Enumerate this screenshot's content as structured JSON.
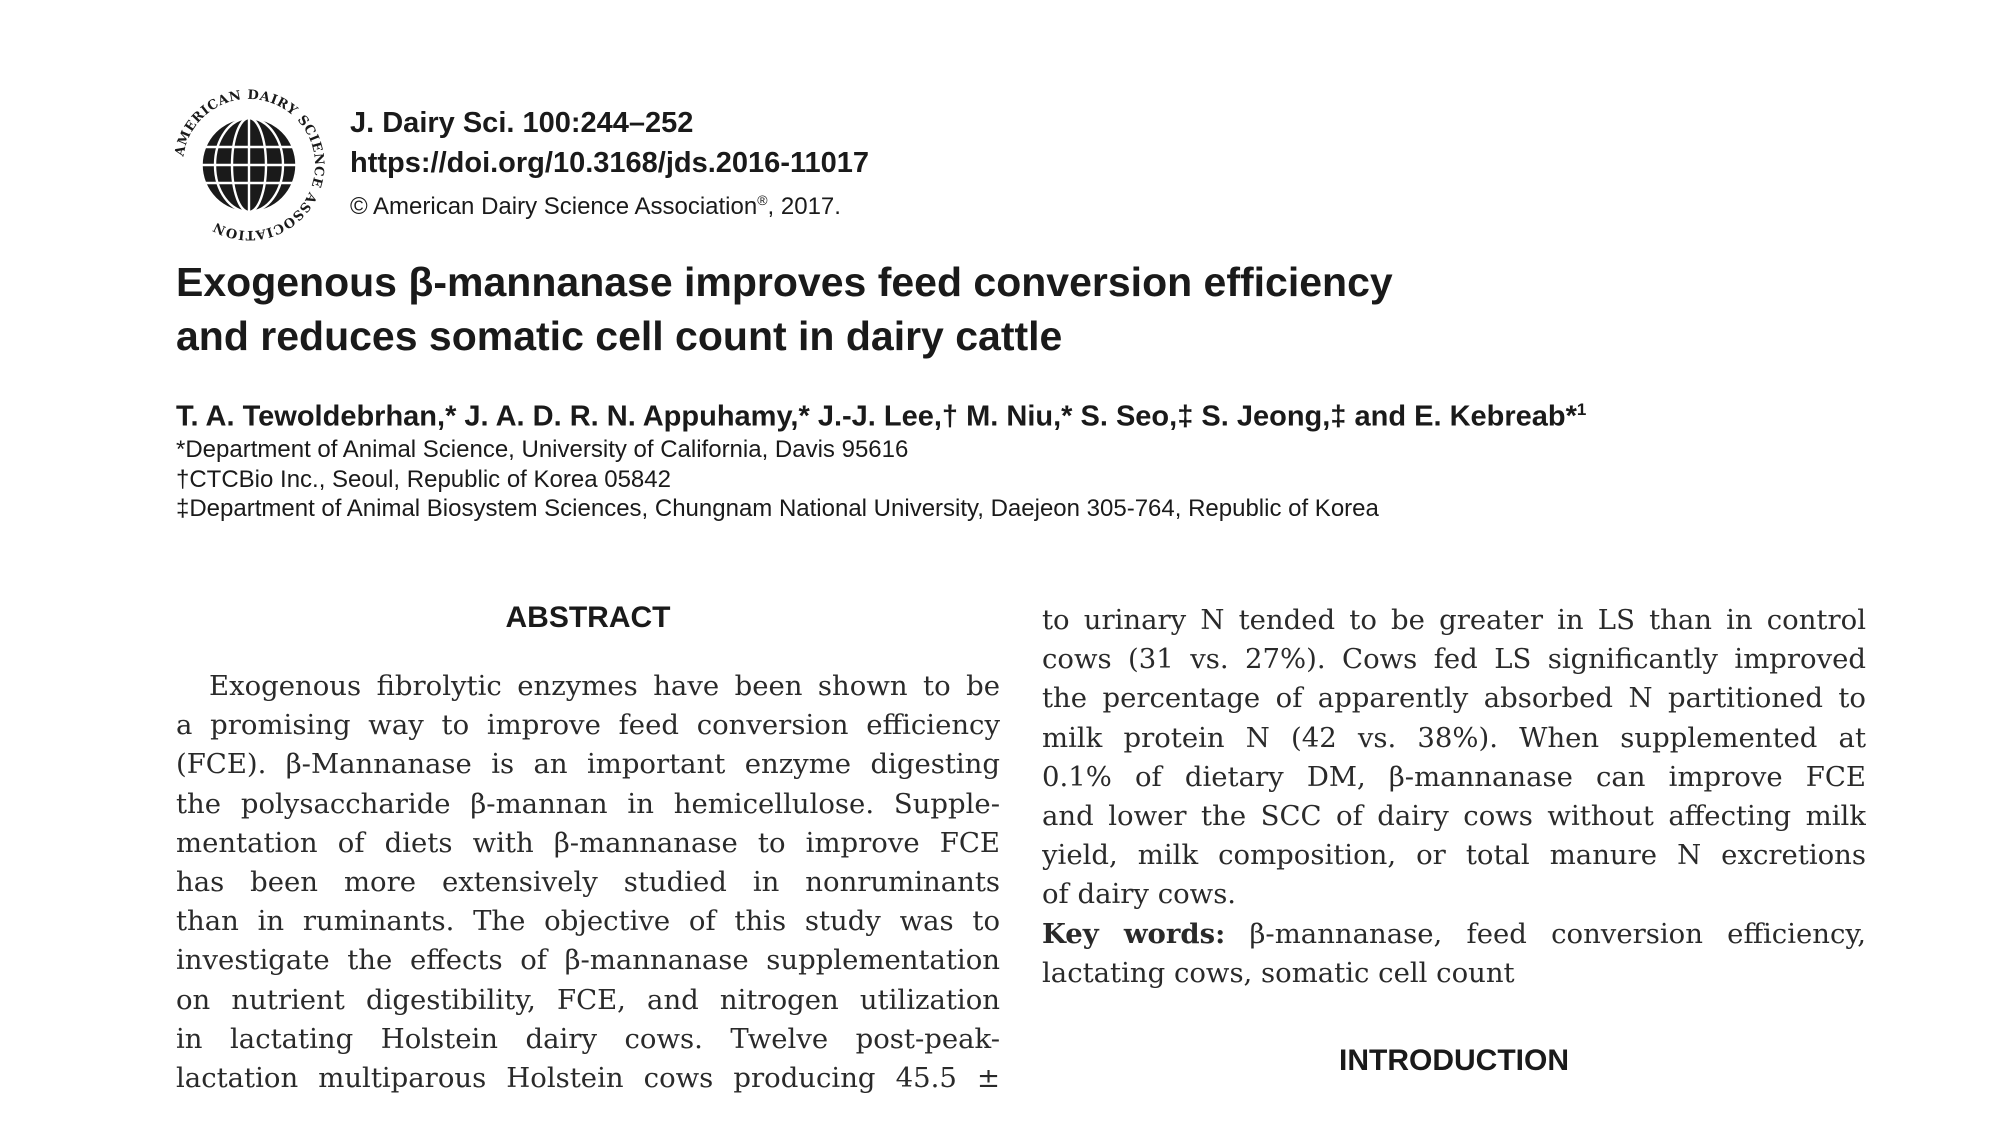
{
  "header": {
    "logo_ring_text": "AMERICAN DAIRY SCIENCE ASSOCIATION",
    "journal_ref": "J. Dairy Sci. 100:244–252",
    "doi": "https://doi.org/10.3168/jds.2016-11017",
    "copyright_prefix": "© American Dairy Science Association",
    "copyright_reg": "®",
    "copyright_suffix": ", 2017."
  },
  "title_lines": [
    "Exogenous β-mannanase improves feed conversion efficiency",
    "and reduces somatic cell count in dairy cattle"
  ],
  "authors": {
    "names": "T. A. Tewoldebrhan,* J. A. D. R. N. Appuhamy,* J.-J. Lee,† M. Niu,* S. Seo,‡ S. Jeong,‡ and E. Kebreab*",
    "sup": "1"
  },
  "affiliations": [
    "*Department of Animal Science, University of California, Davis 95616",
    "†CTCBio Inc., Seoul, Republic of Korea 05842",
    "‡Department of Animal Biosystem Sciences, Chungnam National University, Daejeon 305-764, Republic of Korea"
  ],
  "abstract": {
    "heading": "ABSTRACT",
    "lines": [
      "Exogenous fibrolytic enzymes have been shown to be",
      "a promising way to improve feed conversion efficiency",
      "(FCE). β-Mannanase is an important enzyme digesting",
      "the polysaccharide β-mannan in hemicellulose. Supple-",
      "mentation of diets with β-mannanase to improve FCE",
      "has been more extensively studied in nonruminants",
      "than in ruminants. The objective of this study was to",
      "investigate the effects of β-mannanase supplementation",
      "on nutrient digestibility, FCE, and nitrogen utilization",
      "in lactating Holstein dairy cows. Twelve post-peak-",
      "lactation multiparous Holstein cows producing 45.5 ±"
    ]
  },
  "right_column": {
    "lines": [
      "to urinary N tended to be greater in LS than in control",
      "cows (31 vs. 27%). Cows fed LS significantly improved",
      "the percentage of apparently absorbed N partitioned to",
      "milk protein N (42 vs. 38%). When supplemented at",
      "0.1% of dietary DM, β-mannanase can improve FCE",
      "and lower the SCC of dairy cows without affecting milk",
      "yield, milk composition, or total manure N excretions",
      "of dairy cows."
    ],
    "keywords_label": "Key words:",
    "keywords_line1": "β-mannanase, feed conversion efficiency,",
    "keywords_line2": "lactating cows, somatic cell count"
  },
  "introduction": {
    "heading": "INTRODUCTION"
  },
  "colors": {
    "text": "#1a1a1a",
    "body_text": "#2a2a2a",
    "background": "#ffffff"
  }
}
